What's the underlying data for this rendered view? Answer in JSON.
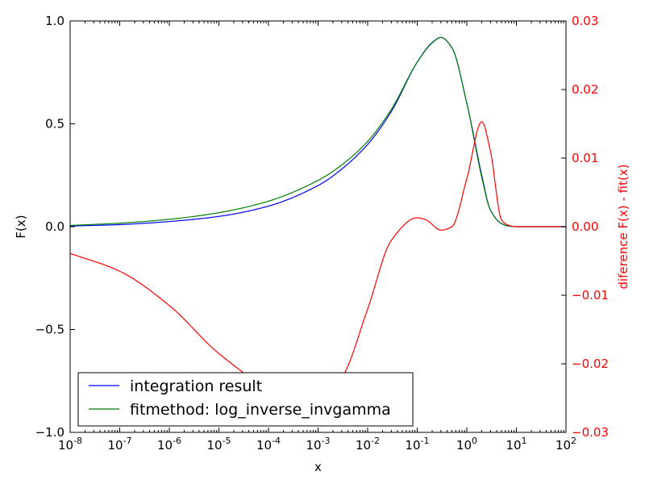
{
  "chart_data": {
    "type": "line",
    "xscale": "log",
    "xlabel": "x",
    "ylabel": "F(x)",
    "y2label": "diference F(x) - fit(x)",
    "xlim": [
      1e-08,
      100
    ],
    "ylim": [
      -1.0,
      1.0
    ],
    "y2lim": [
      -0.03,
      0.03
    ],
    "grid": false,
    "legend_position": "lower left",
    "xticks": [
      {
        "value": 1e-08,
        "base": "10",
        "exp": "-8"
      },
      {
        "value": 1e-07,
        "base": "10",
        "exp": "-7"
      },
      {
        "value": 1e-06,
        "base": "10",
        "exp": "-6"
      },
      {
        "value": 1e-05,
        "base": "10",
        "exp": "-5"
      },
      {
        "value": 0.0001,
        "base": "10",
        "exp": "-4"
      },
      {
        "value": 0.001,
        "base": "10",
        "exp": "-3"
      },
      {
        "value": 0.01,
        "base": "10",
        "exp": "-2"
      },
      {
        "value": 0.1,
        "base": "10",
        "exp": "-1"
      },
      {
        "value": 1,
        "base": "10",
        "exp": "0"
      },
      {
        "value": 10,
        "base": "10",
        "exp": "1"
      },
      {
        "value": 100,
        "base": "10",
        "exp": "2"
      }
    ],
    "yticks": [
      {
        "value": 1.0,
        "label": "1.0"
      },
      {
        "value": 0.5,
        "label": "0.5"
      },
      {
        "value": 0.0,
        "label": "0.0"
      },
      {
        "value": -0.5,
        "label": "−0.5"
      },
      {
        "value": -1.0,
        "label": "−1.0"
      }
    ],
    "y2ticks": [
      {
        "value": 0.03,
        "label": "0.03"
      },
      {
        "value": 0.02,
        "label": "0.02"
      },
      {
        "value": 0.01,
        "label": "0.01"
      },
      {
        "value": 0.0,
        "label": "0.00"
      },
      {
        "value": -0.01,
        "label": "−0.01"
      },
      {
        "value": -0.02,
        "label": "−0.02"
      },
      {
        "value": -0.03,
        "label": "−0.03"
      }
    ],
    "series": [
      {
        "name": "integration result",
        "axis": "left",
        "color": "#0000ff",
        "x": [
          1e-08,
          1e-07,
          1e-06,
          1e-05,
          0.0001,
          0.001,
          0.003,
          0.01,
          0.03,
          0.1,
          0.2,
          0.3,
          0.5,
          1,
          2,
          3,
          5,
          7,
          10,
          100
        ],
        "y": [
          0.003,
          0.01,
          0.025,
          0.05,
          0.1,
          0.2,
          0.28,
          0.4,
          0.56,
          0.8,
          0.895,
          0.92,
          0.87,
          0.6,
          0.25,
          0.08,
          0.015,
          0.003,
          0.0,
          0.0
        ]
      },
      {
        "name": "fitmethod: log_inverse_invgamma",
        "axis": "left",
        "color": "#008000",
        "x": [
          1e-08,
          1e-07,
          1e-06,
          1e-05,
          0.0001,
          0.001,
          0.003,
          0.01,
          0.03,
          0.1,
          0.2,
          0.3,
          0.5,
          1,
          2,
          3,
          5,
          7,
          10,
          100
        ],
        "y": [
          0.006,
          0.017,
          0.036,
          0.068,
          0.124,
          0.225,
          0.3,
          0.415,
          0.57,
          0.8,
          0.893,
          0.92,
          0.87,
          0.6,
          0.24,
          0.08,
          0.015,
          0.003,
          0.0,
          0.0
        ]
      },
      {
        "name": "",
        "axis": "right",
        "color": "#ff0000",
        "x": [
          1e-08,
          1e-07,
          1e-06,
          1e-05,
          0.0001,
          0.0005,
          0.001,
          0.003,
          0.01,
          0.03,
          0.1,
          0.15,
          0.3,
          0.5,
          1,
          2,
          3,
          5,
          7,
          10,
          100
        ],
        "y": [
          -0.0039,
          -0.0065,
          -0.0115,
          -0.0185,
          -0.0235,
          -0.0252,
          -0.025,
          -0.022,
          -0.012,
          -0.002,
          0.0013,
          0.001,
          -0.0005,
          0.0,
          0.007,
          0.0153,
          0.011,
          0.001,
          0.0002,
          0.0,
          0.0
        ]
      }
    ]
  }
}
